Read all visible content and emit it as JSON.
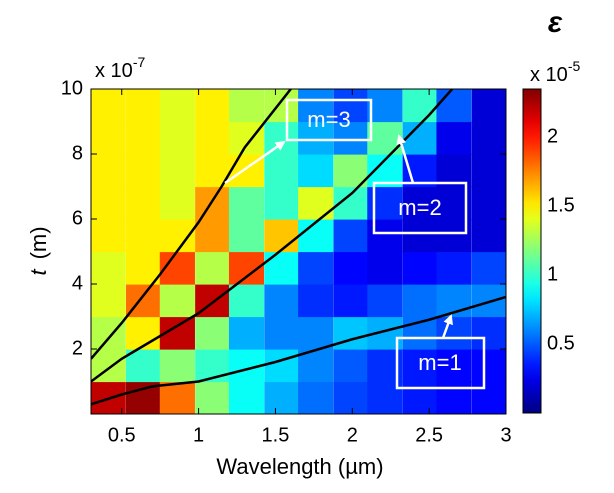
{
  "chart_data": {
    "type": "heatmap",
    "title": "ε",
    "xlabel": "Wavelength  (µm)",
    "ylabel_symbol": "t",
    "ylabel_unit": "(m)",
    "y_multiplier": {
      "base": "x 10",
      "exponent": "-7"
    },
    "color_multiplier": {
      "base": "x 10",
      "exponent": "-5"
    },
    "xlim": [
      0.3,
      3
    ],
    "xticks": [
      0.5,
      1,
      1.5,
      2,
      2.5,
      3
    ],
    "ylim": [
      0,
      10
    ],
    "yticks": [
      2,
      4,
      6,
      8,
      10
    ],
    "clim": [
      0,
      2.35
    ],
    "cticks": [
      0.5,
      1,
      1.5,
      2
    ],
    "colormap": "jet",
    "x": [
      0.41,
      0.64,
      0.86,
      1.09,
      1.31,
      1.54,
      1.76,
      1.99,
      2.21,
      2.44,
      2.66,
      2.89
    ],
    "y": [
      0.5,
      1.5,
      2.5,
      3.5,
      4.5,
      5.5,
      6.5,
      7.5,
      8.5,
      9.5
    ],
    "z": [
      [
        2.2,
        2.3,
        1.8,
        1.2,
        0.9,
        0.7,
        0.55,
        0.45,
        0.4,
        0.35,
        0.3,
        0.3
      ],
      [
        1.3,
        1.0,
        1.2,
        1.0,
        0.9,
        0.8,
        0.6,
        0.5,
        0.4,
        0.35,
        0.3,
        0.3
      ],
      [
        1.3,
        1.5,
        2.2,
        1.2,
        0.7,
        0.6,
        0.6,
        0.75,
        0.7,
        0.55,
        0.45,
        0.4
      ],
      [
        1.4,
        1.8,
        1.3,
        2.2,
        1.0,
        0.6,
        0.4,
        0.35,
        0.45,
        0.55,
        0.6,
        0.6
      ],
      [
        1.4,
        1.5,
        1.9,
        1.3,
        1.9,
        0.9,
        0.45,
        0.3,
        0.25,
        0.3,
        0.35,
        0.45
      ],
      [
        1.5,
        1.5,
        1.5,
        1.7,
        1.1,
        1.6,
        0.9,
        0.45,
        0.25,
        0.2,
        0.2,
        0.2
      ],
      [
        1.5,
        1.5,
        1.4,
        1.7,
        1.1,
        1.0,
        1.4,
        1.0,
        0.4,
        0.2,
        0.2,
        0.2
      ],
      [
        1.5,
        1.5,
        1.4,
        1.5,
        1.5,
        1.0,
        0.8,
        1.2,
        0.9,
        0.35,
        0.2,
        0.2
      ],
      [
        1.5,
        1.5,
        1.4,
        1.5,
        1.4,
        1.0,
        0.7,
        0.6,
        1.1,
        0.7,
        0.25,
        0.2
      ],
      [
        1.5,
        1.5,
        1.4,
        1.5,
        1.3,
        1.3,
        0.6,
        0.45,
        0.6,
        1.0,
        0.5,
        0.2
      ]
    ],
    "series": [
      {
        "color": "#000000",
        "x": [
          0.3,
          0.5,
          0.7,
          0.9,
          1.0,
          1.5,
          2,
          2.5,
          3
        ],
        "values": [
          0.3,
          0.6,
          0.85,
          0.95,
          1.0,
          1.6,
          2.3,
          2.9,
          3.6
        ]
      },
      {
        "color": "#000000",
        "x": [
          0.3,
          0.5,
          0.75,
          1,
          1.25,
          1.5,
          2,
          2.5,
          2.65
        ],
        "values": [
          1.0,
          1.7,
          2.4,
          3.1,
          4.0,
          4.9,
          6.8,
          9.2,
          10
        ]
      },
      {
        "color": "#000000",
        "x": [
          0.3,
          0.5,
          0.75,
          1,
          1.15,
          1.3,
          1.6
        ],
        "values": [
          1.7,
          2.8,
          4.3,
          5.9,
          7.0,
          8.2,
          10
        ]
      }
    ],
    "annotations": [
      "m=3",
      "m=2",
      "m=1"
    ]
  }
}
